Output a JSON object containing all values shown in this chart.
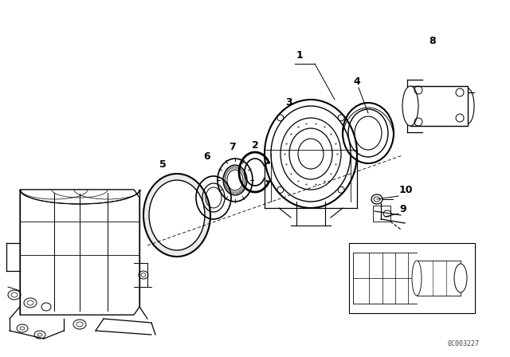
{
  "background_color": "#ffffff",
  "line_color": "#000000",
  "figure_width": 6.4,
  "figure_height": 4.48,
  "dpi": 100,
  "watermark": "0C003227"
}
